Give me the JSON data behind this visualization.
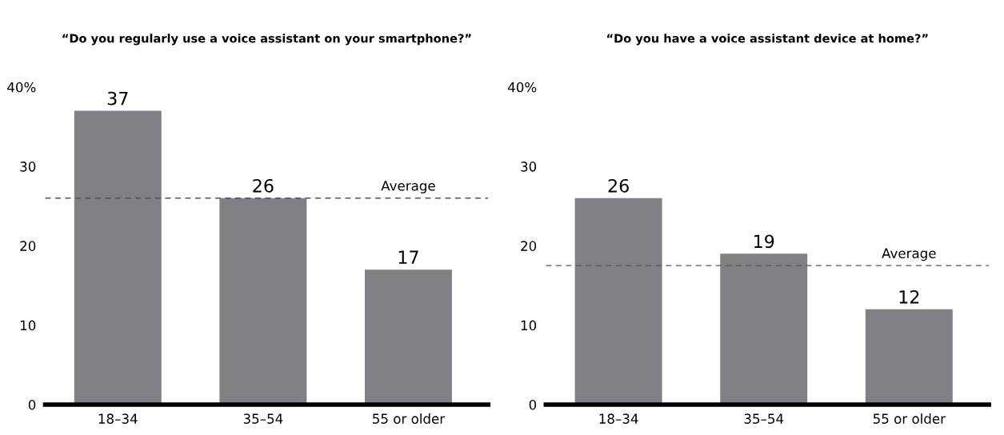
{
  "chart_data": [
    {
      "type": "bar",
      "title": "“Do you regularly use a voice assistant on your smartphone?”",
      "categories": [
        "18–34",
        "35–54",
        "55 or older"
      ],
      "values": [
        37,
        26,
        17
      ],
      "color": "#808185",
      "data_labels": true,
      "ylim": [
        0,
        40
      ],
      "yticks": [
        0,
        10,
        20,
        30,
        {
          "value": 40,
          "label": "40%"
        }
      ],
      "grid": false,
      "ref_lines": [
        {
          "axis": "y",
          "value": 26,
          "label": "Average",
          "color": "#555555",
          "line_style": "dashed"
        }
      ]
    },
    {
      "type": "bar",
      "title": "“Do you have a voice assistant device at home?”",
      "categories": [
        "18–34",
        "35–54",
        "55 or older"
      ],
      "values": [
        26,
        19,
        12
      ],
      "color": "#808185",
      "data_labels": true,
      "ylim": [
        0,
        40
      ],
      "yticks": [
        0,
        10,
        20,
        30,
        {
          "value": 40,
          "label": "40%"
        }
      ],
      "grid": false,
      "ref_lines": [
        {
          "axis": "y",
          "value": 17.5,
          "label": "Average",
          "color": "#555555",
          "line_style": "dashed"
        }
      ]
    }
  ]
}
